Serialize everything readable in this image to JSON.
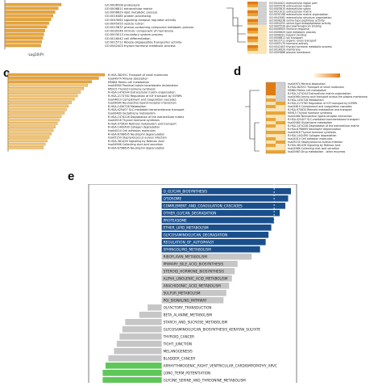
{
  "panels": {
    "c": "c",
    "d": "d",
    "e": "e"
  },
  "panel_a_partial": {
    "xlabel": "-Log10(P)",
    "terms": [
      "GO:0006508 proteolysis",
      "GO:0006811 extracellular matrix",
      "GO:0006629 lipid metabolic process",
      "GO:0016485 protein processing",
      "GO:0043062 signaling receptor regulator activity",
      "GO:0045055 vesicle lumen",
      "GO:0019637 phenol-containing compound metabolic process",
      "GO:0030246 intrinsic component of membrane",
      "GO:0003013 circulatory system process",
      "GO:0016042 cell differentiation",
      "GO:0015711 Ribose-oligopeptide transporter activity",
      "GO:0042403 thyroid hormone metabolic process"
    ],
    "values": [
      5.5,
      5.2,
      4.9,
      4.7,
      4.5,
      4.3,
      4.1,
      3.9,
      3.8,
      3.7,
      3.6,
      3.5
    ]
  },
  "panel_b_partial": {
    "terms": [
      "GO:0044421 extracellular region part",
      "GO:0005576 extracellular region",
      "GO:0005615 extracellular space",
      "GO:0031012 extracellular matrix",
      "GO:0030198 extracellular matrix organization",
      "GO:0043062 extracellular structure organization",
      "GO:0008236 serine-type peptidase activity",
      "GO:0004252 serine-type endopeptidase activity",
      "GO:0005539 glycosaminoglycan binding",
      "GO:0006955 immune response",
      "GO:0006629 lipid metabolic process",
      "GO:0008201 heparin binding",
      "GO:0006811 ion transport",
      "GO:0015711 organic anion transport",
      "GO:0005179 hormone activity",
      "GO:0042403 thyroid hormone metabolic process",
      "GO:0016020 membrane",
      "GO:0005886 plasma membrane"
    ]
  },
  "panel_c": {
    "terms": [
      "R-HSA-382551 Transport of small molecules",
      "hsa04974 Mineral absorption",
      "M5884 Matrix cell metabolism",
      "hsa04964 Proximal tubule bicarbonate reclamation",
      "M5915 Thyroid hormone synthesis",
      "R-HSA-1474244 Extracellular matrix organization",
      "R-HSA-2173782 Regulation of IGF transport by IGFBPs",
      "hsa04610 Complement and coagulation cascades",
      "hsa04080 Neuroactive ligand-receptor interaction",
      "R-HSA-1430728 Metabolism",
      "R-HSA-425407 SLC-mediated transmembrane transport",
      "hsa00480 Glutathione metabolism",
      "R-HSA-1474228 Degradation of the extracellular matrix",
      "hsa04918 Thyroid hormone synthesis",
      "R-HSA-975634 Retinoid metabolism and transport",
      "R-HSA-1442490 Collagen degradation",
      "hsa04514 Cell adhesion molecules",
      "R-HSA-6798695 Neutrophil degranulation",
      "hsa05150 Staphylococcus aureus infection",
      "R-HSA-381426 Signaling by Retinoic Acid",
      "hsa04966 Collecting duct acid secretion",
      "R-HSA-6798695 Neutrophil degranulation"
    ],
    "values": [
      9.6,
      9.0,
      8.3,
      7.9,
      7.5,
      7.2,
      6.9,
      6.6,
      6.3,
      6.0,
      5.8,
      5.6,
      5.3,
      5.1,
      4.9,
      4.7,
      4.5,
      4.3,
      4.1,
      3.9,
      3.7,
      3.5
    ]
  },
  "panel_d": {
    "terms": [
      "hsa04974 Mineral absorption",
      "R-HSA-382551 Transport of small molecules",
      "M5884 Matrix cell metabolism",
      "R-HSA-1474244 Extracellular matrix organization",
      "hsa04964 Amino acid transport across the plasma membrane",
      "R-HSA-1430728 Metabolism",
      "R-HSA-2173782 Regulation of IGF transport by IGFBPs",
      "hsa04610 Complement and coagulation cascades",
      "R-HSA-975634 Retinoid metabolism and transport",
      "M5915 Thyroid hormone synthesis",
      "hsa04080 Neuroactive ligand-receptor interaction",
      "R-HSA-425407 SLC-mediated transmembrane transport",
      "hsa00480 Glutathione metabolism",
      "R-HSA-1474228 Degradation of the extracellular matrix",
      "R-HSA-6798695 Neutrophil degranulation",
      "hsa04918 Thyroid hormone synthesis",
      "R-HSA-1442490 Collagen degradation",
      "hsa04514 Cell adhesion molecules",
      "hsa05150 Staphylococcus aureus infection",
      "R-HSA-381426 Signaling by Retinoic Acid",
      "hsa04966 Collecting duct acid secretion",
      "hsa00983 Drug metabolism - other enzymes"
    ]
  },
  "chart_data": {
    "type": "bar",
    "orientation": "horizontal",
    "title": "",
    "categories": [
      "O_GLYCAN_BIOSYNTHESIS",
      "LYSOSOME",
      "COMPLEMENT_AND_COAGULATION_CASCADES",
      "OTHER_GLYCAN_DEGRADATION",
      "PROTEASOME",
      "ETHER_LIPID_METABOLISM",
      "GLYCOSAMINOGLYCAN_DEGRADATION",
      "REGULATION_OF_AUTOPHAGY",
      "SPHINGOLIPID_METABOLISM",
      "RIBOFLAVIN_METABOLISM",
      "PRIMARY_BILE_ACID_BIOSYNTHESIS",
      "STEROID_HORMONE_BIOSYNTHESIS",
      "ALPHA_LINOLENIC_ACID_METABOLISM",
      "ARACHIDONIC_ACID_METABOLISM",
      "SULFUR_METABOLISM",
      "PGI_SIGNALING_PATHWAY",
      "OLFACTORY_TRANSDUCTION",
      "BETA_ALANINE_METABOLISM",
      "STARCH_AND_SUCROSE_METABOLISM",
      "GLYCOSAMINOGLYCAN_BIOSYNTHESIS_KERATAN_SULFATE",
      "THYROID_CANCER",
      "TIGHT_JUNCTION",
      "MELANOGENESIS",
      "BLADDER_CANCER",
      "ARRHYTHMOGENIC_RIGHT_VENTRICULAR_CARDIOMYOPATHY_ARVC",
      "LONG_TERM_POTENTIATION",
      "GLYCINE_SERINE_AND_THREONINE_METABOLISM"
    ],
    "values": [
      2.3,
      2.25,
      2.2,
      2.1,
      2.0,
      1.95,
      1.9,
      1.85,
      1.75,
      1.6,
      1.35,
      1.3,
      1.25,
      1.2,
      1.15,
      1.1,
      -0.25,
      -0.4,
      -0.65,
      -0.7,
      -0.75,
      -0.8,
      -0.85,
      -0.95,
      -1.0,
      -1.05,
      -1.05
    ],
    "groups": [
      "blue",
      "blue",
      "blue",
      "blue",
      "blue",
      "blue",
      "blue",
      "blue",
      "blue",
      "gray",
      "gray",
      "gray",
      "gray",
      "gray",
      "gray",
      "gray",
      "gray",
      "gray",
      "gray",
      "gray",
      "gray",
      "gray",
      "gray",
      "gray",
      "green",
      "green",
      "green"
    ],
    "colors": {
      "blue": "#1a4f8c",
      "gray": "#c6c6c6",
      "green": "#5fc65a"
    },
    "xlim": [
      -1.3,
      2.4
    ],
    "xlabel": "",
    "ylabel": ""
  },
  "colors": {
    "bar_orange": "#e8a53a",
    "bar_orange_light": "#f2c77a",
    "heat_dark": "#e07b12",
    "heat_light": "#fbe4b5",
    "heat_gray": "#d0d0d0"
  }
}
